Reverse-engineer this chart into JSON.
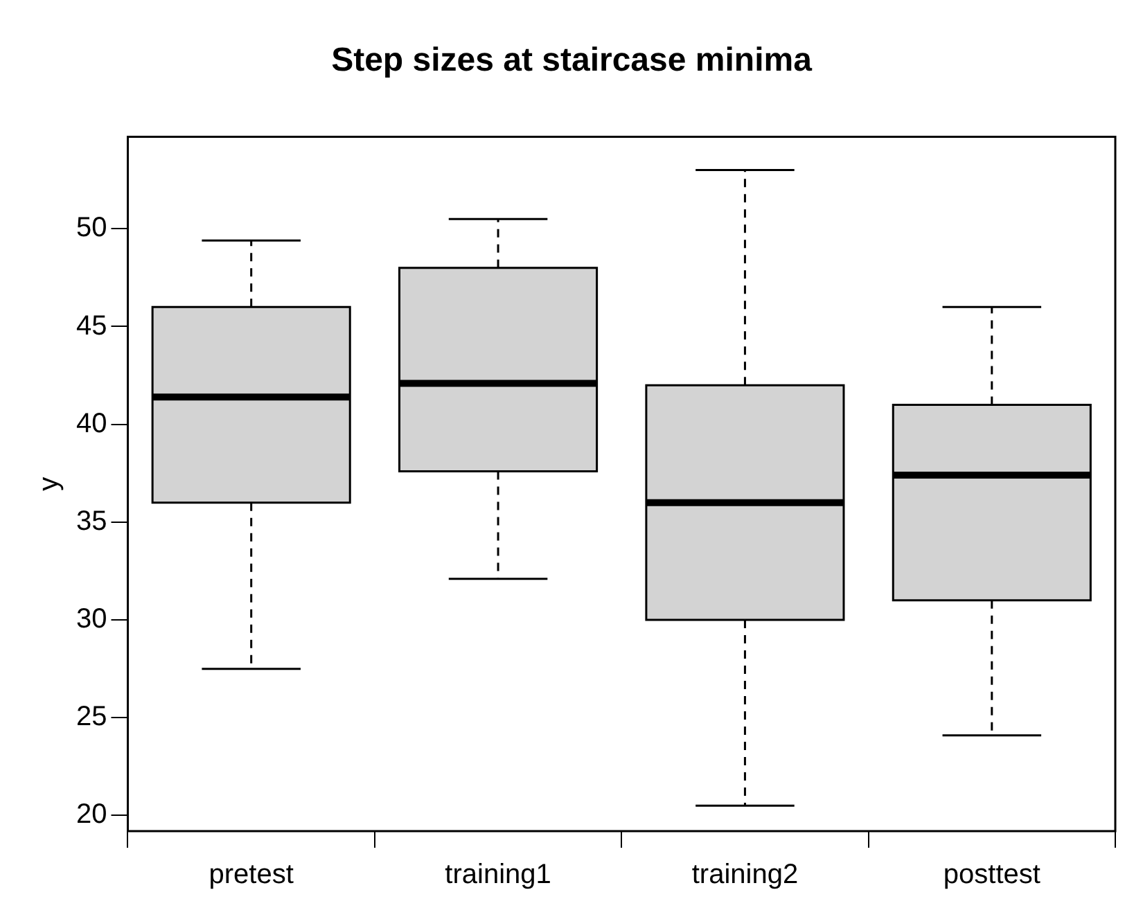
{
  "chart_data": {
    "type": "box",
    "title": "Step sizes at staircase minima",
    "ylabel": "y",
    "categories": [
      "pretest",
      "training1",
      "training2",
      "posttest"
    ],
    "boxes": [
      {
        "low": 27.5,
        "q1": 36.0,
        "median": 41.4,
        "q3": 46.0,
        "high": 49.4
      },
      {
        "low": 32.1,
        "q1": 37.6,
        "median": 42.1,
        "q3": 48.0,
        "high": 50.5
      },
      {
        "low": 20.5,
        "q1": 30.0,
        "median": 36.0,
        "q3": 42.0,
        "high": 53.0
      },
      {
        "low": 24.1,
        "q1": 31.0,
        "median": 37.4,
        "q3": 41.0,
        "high": 46.0
      }
    ],
    "color": "#d3d3d3",
    "ylim": [
      19.2,
      54.7
    ],
    "yticks": [
      20,
      25,
      30,
      35,
      40,
      45,
      50
    ],
    "grid": false,
    "legend": false,
    "line_style": "dashed"
  }
}
